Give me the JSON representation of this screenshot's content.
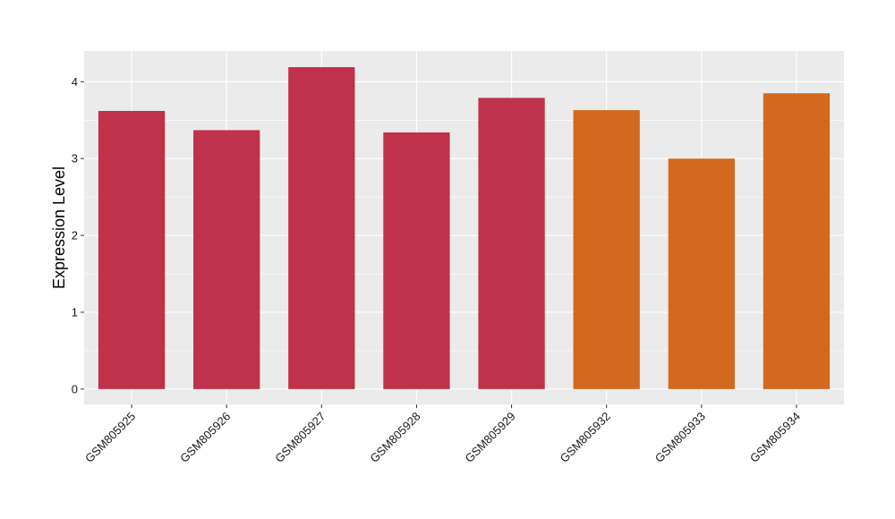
{
  "chart_data": {
    "type": "bar",
    "title": "",
    "xlabel": "",
    "ylabel": "Expression Level",
    "categories": [
      "GSM805925",
      "GSM805926",
      "GSM805927",
      "GSM805928",
      "GSM805929",
      "GSM805932",
      "GSM805933",
      "GSM805934"
    ],
    "values": [
      3.62,
      3.37,
      4.19,
      3.34,
      3.79,
      3.63,
      3.0,
      3.85
    ],
    "bar_colors": [
      "#c0314a",
      "#c0314a",
      "#c0314a",
      "#c0314a",
      "#c0314a",
      "#d2691e",
      "#d2691e",
      "#d2691e"
    ],
    "ylim": [
      -0.2,
      4.4
    ],
    "yticks": [
      0,
      1,
      2,
      3,
      4
    ],
    "grid": true,
    "panel_background": "#ebebeb",
    "gridline_color": "#ffffff"
  }
}
